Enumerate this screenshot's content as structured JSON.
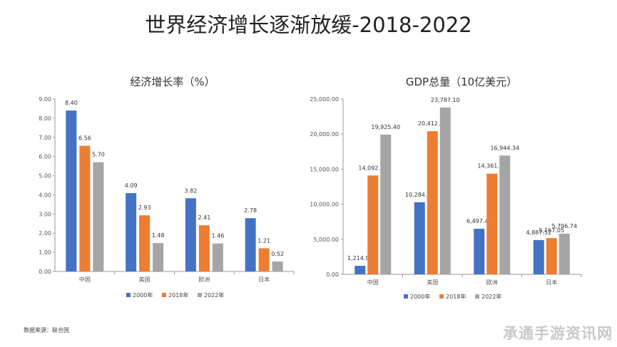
{
  "title": "世界经济增长逐渐放缓-2018-2022",
  "source": "数据来源：联合国",
  "watermark": "承通手游资讯网",
  "colors": {
    "s2000": "#4472C4",
    "s2018": "#ED7D31",
    "s2022": "#A5A5A5",
    "axis": "#999999"
  },
  "chart_data": [
    {
      "type": "bar",
      "title": "经济增长率（%）",
      "categories": [
        "中国",
        "美国",
        "欧洲",
        "日本"
      ],
      "series": [
        {
          "name": "2000年",
          "values": [
            8.4,
            4.09,
            3.82,
            2.78
          ]
        },
        {
          "name": "2018年",
          "values": [
            6.56,
            2.93,
            2.41,
            1.21
          ]
        },
        {
          "name": "2022年",
          "values": [
            5.7,
            1.48,
            1.46,
            0.52
          ]
        }
      ],
      "value_labels": [
        [
          "8.40",
          "4.09",
          "3.82",
          "2.78"
        ],
        [
          "6.56",
          "2.93",
          "2.41",
          "1.21"
        ],
        [
          "5.70",
          "1.48",
          "1.46",
          "0.52"
        ]
      ],
      "yticks": [
        "0.00",
        "1.00",
        "2.00",
        "3.00",
        "4.00",
        "5.00",
        "6.00",
        "7.00",
        "8.00",
        "9.00"
      ],
      "ylim": [
        0,
        9
      ],
      "legend": "bottom"
    },
    {
      "type": "bar",
      "title": "GDP总量（10亿美元）",
      "categories": [
        "中国",
        "美国",
        "欧洲",
        "日本"
      ],
      "series": [
        {
          "name": "2000年",
          "values": [
            1214.92,
            10284.75,
            6497.43,
            4887.52
          ]
        },
        {
          "name": "2018年",
          "values": [
            14092.51,
            20412.87,
            14361.46,
            5167.05
          ]
        },
        {
          "name": "2022年",
          "values": [
            19925.4,
            23787.1,
            16944.34,
            5796.74
          ]
        }
      ],
      "value_labels": [
        [
          "1,214.92",
          "10,284.75",
          "6,497.43",
          "4,887.52"
        ],
        [
          "14,092.51",
          "20,412.87",
          "14,361.46",
          "5,167.05"
        ],
        [
          "19,925.40",
          "23,787.10",
          "16,944.34",
          "5,796.74"
        ]
      ],
      "yticks": [
        "0.00",
        "5,000.00",
        "10,000.00",
        "15,000.00",
        "20,000.00",
        "25,000.00"
      ],
      "ylim": [
        0,
        25000
      ],
      "legend": "bottom"
    }
  ]
}
